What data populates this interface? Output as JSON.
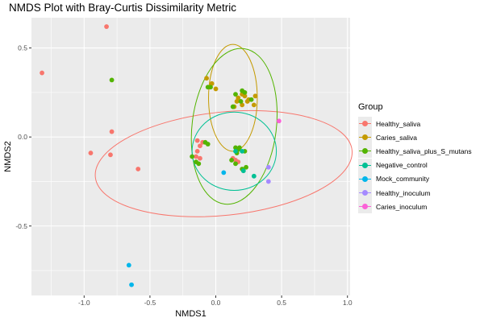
{
  "chart_data": {
    "type": "scatter",
    "title": "NMDS Plot with Bray-Curtis Dissimilarity Metric",
    "xlabel": "NMDS1",
    "ylabel": "NMDS2",
    "xlim": [
      -1.4,
      1.02
    ],
    "ylim": [
      -0.89,
      0.67
    ],
    "x_ticks": [
      -1.0,
      -0.5,
      0.0,
      0.5,
      1.0
    ],
    "x_tick_labels": [
      "-1.0",
      "-0.5",
      "0.0",
      "0.5",
      "1.0"
    ],
    "y_ticks": [
      -0.5,
      0.0,
      0.5
    ],
    "y_tick_labels": [
      "-0.5",
      "0.0",
      "0.5"
    ],
    "grid": true,
    "legend_title": "Group",
    "legend_position": "right",
    "series": [
      {
        "name": "Healthy_saliva",
        "color": "#F8766D",
        "points": [
          [
            -0.83,
            0.62
          ],
          [
            -1.32,
            0.36
          ],
          [
            -0.79,
            0.03
          ],
          [
            -0.95,
            -0.09
          ],
          [
            -0.8,
            -0.1
          ],
          [
            -0.59,
            -0.18
          ],
          [
            -0.14,
            -0.02
          ],
          [
            -0.1,
            -0.03
          ],
          [
            -0.12,
            -0.05
          ],
          [
            -0.14,
            -0.08
          ],
          [
            -0.15,
            -0.11
          ],
          [
            -0.12,
            -0.12
          ],
          [
            0.13,
            -0.12
          ],
          [
            0.15,
            -0.13
          ],
          [
            0.17,
            -0.14
          ]
        ],
        "ellipse": {
          "center": [
            0.06,
            -0.15
          ],
          "rx": 0.98,
          "ry": 0.29,
          "angle": -6
        }
      },
      {
        "name": "Caries_saliva",
        "color": "#C49A00",
        "points": [
          [
            -0.07,
            0.33
          ],
          [
            -0.03,
            0.3
          ],
          [
            -0.05,
            0.28
          ],
          [
            0.0,
            0.27
          ],
          [
            0.17,
            0.22
          ],
          [
            0.2,
            0.24
          ],
          [
            0.22,
            0.23
          ],
          [
            0.25,
            0.21
          ],
          [
            0.3,
            0.23
          ],
          [
            0.14,
            0.17
          ],
          [
            0.29,
            0.18
          ],
          [
            0.24,
            0.2
          ],
          [
            0.2,
            0.18
          ],
          [
            0.16,
            0.2
          ]
        ],
        "ellipse": {
          "center": [
            0.13,
            0.22
          ],
          "rx": 0.185,
          "ry": 0.3,
          "angle": 0
        }
      },
      {
        "name": "Healthy_saliva_plus_S_mutans",
        "color": "#53B400",
        "points": [
          [
            -0.79,
            0.32
          ],
          [
            -0.06,
            0.28
          ],
          [
            -0.04,
            0.28
          ],
          [
            0.15,
            0.24
          ],
          [
            0.2,
            0.26
          ],
          [
            0.22,
            0.25
          ],
          [
            0.27,
            0.21
          ],
          [
            0.19,
            0.2
          ],
          [
            0.13,
            0.17
          ],
          [
            -0.08,
            -0.03
          ],
          [
            -0.06,
            -0.04
          ],
          [
            -0.18,
            -0.11
          ],
          [
            -0.15,
            -0.14
          ],
          [
            -0.13,
            -0.15
          ],
          [
            0.15,
            -0.06
          ],
          [
            0.17,
            -0.07
          ],
          [
            0.18,
            -0.06
          ],
          [
            0.22,
            -0.08
          ],
          [
            0.16,
            -0.09
          ],
          [
            0.12,
            -0.13
          ],
          [
            0.15,
            -0.15
          ],
          [
            0.2,
            -0.18
          ],
          [
            0.23,
            -0.17
          ]
        ],
        "ellipse": {
          "center": [
            0.14,
            0.06
          ],
          "rx": 0.32,
          "ry": 0.44,
          "angle": 7
        }
      },
      {
        "name": "Negative_control",
        "color": "#00C094",
        "points": [
          [
            0.15,
            -0.08
          ],
          [
            0.2,
            -0.08
          ],
          [
            0.21,
            -0.19
          ],
          [
            0.29,
            -0.22
          ]
        ],
        "ellipse": {
          "center": [
            0.14,
            -0.08
          ],
          "rx": 0.32,
          "ry": 0.22,
          "angle": 0
        }
      },
      {
        "name": "Mock_community",
        "color": "#00B6EB",
        "points": [
          [
            0.06,
            -0.2
          ],
          [
            -0.66,
            -0.72
          ],
          [
            -0.64,
            -0.83
          ]
        ]
      },
      {
        "name": "Healthy_inoculum",
        "color": "#A58AFF",
        "points": [
          [
            0.4,
            -0.17
          ],
          [
            0.4,
            -0.25
          ]
        ]
      },
      {
        "name": "Caries_inoculum",
        "color": "#FB61D7",
        "points": [
          [
            0.48,
            0.09
          ]
        ]
      }
    ]
  }
}
